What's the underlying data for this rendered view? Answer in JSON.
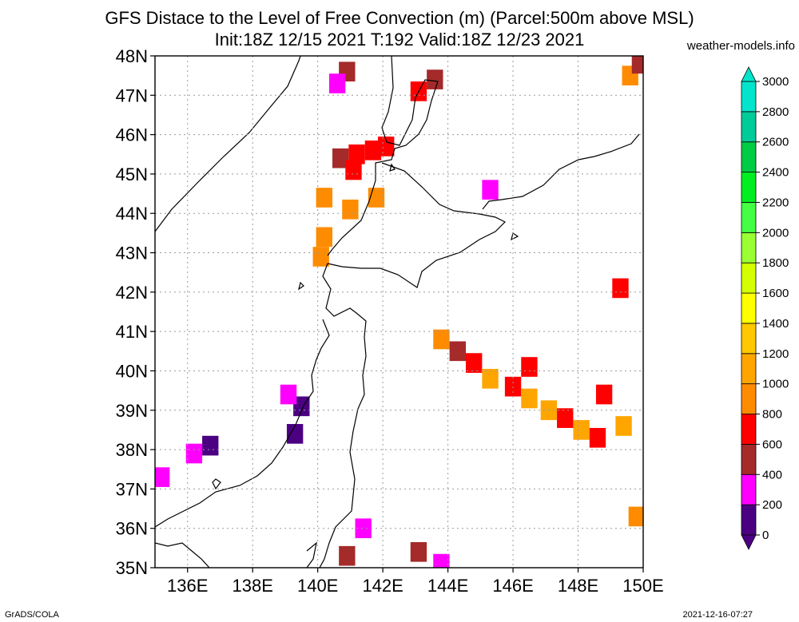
{
  "chart_data": {
    "type": "heatmap",
    "title": "GFS Distace to the Level of Free Convection (m) (Parcel:500m above MSL)",
    "subtitle": "Init:18Z 12/15 2021 T:192 Valid:18Z 12/23 2021",
    "source": "weather-models.info",
    "footer_left": "GrADS/COLA",
    "footer_right": "2021-12-16-07:27",
    "x_range": [
      135,
      150
    ],
    "y_range": [
      35,
      48
    ],
    "x_ticks": [
      136,
      138,
      140,
      142,
      144,
      146,
      148,
      150
    ],
    "x_tick_labels": [
      "136E",
      "138E",
      "140E",
      "142E",
      "144E",
      "146E",
      "148E",
      "150E"
    ],
    "y_ticks": [
      35,
      36,
      37,
      38,
      39,
      40,
      41,
      42,
      43,
      44,
      45,
      46,
      47,
      48
    ],
    "y_tick_labels": [
      "35N",
      "36N",
      "37N",
      "38N",
      "39N",
      "40N",
      "41N",
      "42N",
      "43N",
      "44N",
      "45N",
      "46N",
      "47N",
      "48N"
    ],
    "grid": true,
    "colorbar": {
      "levels": [
        0,
        200,
        400,
        600,
        800,
        1000,
        1200,
        1400,
        1600,
        1800,
        2000,
        2200,
        2400,
        2600,
        2800,
        3000
      ],
      "labels": [
        "0",
        "200",
        "400",
        "600",
        "800",
        "1000",
        "1200",
        "1400",
        "1600",
        "1800",
        "2000",
        "2200",
        "2400",
        "2600",
        "2800",
        "3000"
      ],
      "colors": [
        "#4b0082",
        "#ff00ff",
        "#a52a2a",
        "#ff0000",
        "#ff8c00",
        "#ffa500",
        "#ffc800",
        "#ffff00",
        "#d4ff00",
        "#9aff33",
        "#44ff44",
        "#00ee22",
        "#00cc44",
        "#00cc99",
        "#00e5cc",
        "#00ffee"
      ],
      "below_color": "#4b0082",
      "above_color": "#00e5cc"
    },
    "cells": [
      {
        "lon": 140.9,
        "lat": 47.6,
        "v": 500
      },
      {
        "lon": 140.6,
        "lat": 47.3,
        "v": 200
      },
      {
        "lon": 143.1,
        "lat": 47.1,
        "v": 600
      },
      {
        "lon": 143.6,
        "lat": 47.4,
        "v": 500
      },
      {
        "lon": 141.2,
        "lat": 45.5,
        "v": 600
      },
      {
        "lon": 141.7,
        "lat": 45.6,
        "v": 600
      },
      {
        "lon": 140.7,
        "lat": 45.4,
        "v": 450
      },
      {
        "lon": 141.1,
        "lat": 45.1,
        "v": 600
      },
      {
        "lon": 142.1,
        "lat": 45.7,
        "v": 600
      },
      {
        "lon": 140.2,
        "lat": 44.4,
        "v": 800
      },
      {
        "lon": 141.0,
        "lat": 44.1,
        "v": 900
      },
      {
        "lon": 141.8,
        "lat": 44.4,
        "v": 900
      },
      {
        "lon": 140.2,
        "lat": 43.4,
        "v": 850
      },
      {
        "lon": 140.1,
        "lat": 42.9,
        "v": 850
      },
      {
        "lon": 145.3,
        "lat": 44.6,
        "v": 200
      },
      {
        "lon": 149.3,
        "lat": 42.1,
        "v": 600
      },
      {
        "lon": 149.6,
        "lat": 47.5,
        "v": 900
      },
      {
        "lon": 149.9,
        "lat": 47.8,
        "v": 500
      },
      {
        "lon": 143.8,
        "lat": 40.8,
        "v": 900
      },
      {
        "lon": 144.3,
        "lat": 40.5,
        "v": 550
      },
      {
        "lon": 144.8,
        "lat": 40.2,
        "v": 600
      },
      {
        "lon": 145.3,
        "lat": 39.8,
        "v": 1000
      },
      {
        "lon": 146.0,
        "lat": 39.6,
        "v": 600
      },
      {
        "lon": 146.5,
        "lat": 39.3,
        "v": 1000
      },
      {
        "lon": 147.1,
        "lat": 39.0,
        "v": 1000
      },
      {
        "lon": 147.6,
        "lat": 38.8,
        "v": 600
      },
      {
        "lon": 148.1,
        "lat": 38.5,
        "v": 1000
      },
      {
        "lon": 148.6,
        "lat": 38.3,
        "v": 600
      },
      {
        "lon": 149.4,
        "lat": 38.6,
        "v": 1000
      },
      {
        "lon": 146.5,
        "lat": 40.1,
        "v": 600
      },
      {
        "lon": 148.8,
        "lat": 39.4,
        "v": 600
      },
      {
        "lon": 139.5,
        "lat": 39.1,
        "v": 100
      },
      {
        "lon": 139.1,
        "lat": 39.4,
        "v": 200
      },
      {
        "lon": 139.3,
        "lat": 38.4,
        "v": 100
      },
      {
        "lon": 136.7,
        "lat": 38.1,
        "v": 100
      },
      {
        "lon": 136.2,
        "lat": 37.9,
        "v": 300
      },
      {
        "lon": 135.2,
        "lat": 37.3,
        "v": 200
      },
      {
        "lon": 149.8,
        "lat": 36.3,
        "v": 900
      },
      {
        "lon": 141.4,
        "lat": 36.0,
        "v": 200
      },
      {
        "lon": 140.9,
        "lat": 35.3,
        "v": 500
      },
      {
        "lon": 143.1,
        "lat": 35.4,
        "v": 400
      },
      {
        "lon": 143.8,
        "lat": 35.1,
        "v": 200
      }
    ]
  }
}
